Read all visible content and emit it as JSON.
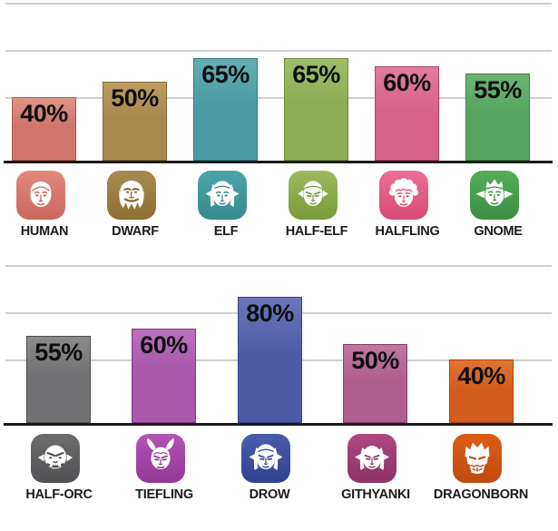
{
  "page": {
    "background": "#ffffff",
    "axis_color": "#1a1a1a",
    "gridline_color": "#cfcfcf",
    "value_text_color": "#0e0e0e",
    "label_text_color": "#1b1b1b"
  },
  "chart_data": [
    {
      "type": "bar",
      "title": "",
      "unit": "%",
      "ylim": [
        0,
        100
      ],
      "gridline_values": [
        100,
        70,
        40
      ],
      "grid": true,
      "legend_position": "none",
      "categories": [
        "HUMAN",
        "DWARF",
        "ELF",
        "HALF-ELF",
        "HALFLING",
        "GNOME"
      ],
      "values": [
        40,
        50,
        65,
        65,
        60,
        55
      ],
      "bars": [
        {
          "label": "HUMAN",
          "value": 40,
          "value_label": "40%",
          "fill": "#d0756a",
          "fill_light": "#de9488",
          "border": "#b25a4b",
          "icon": "human-face-icon",
          "icon_top": "#e2897a",
          "icon_bottom": "#c9685c"
        },
        {
          "label": "DWARF",
          "value": 50,
          "value_label": "50%",
          "fill": "#a7894d",
          "fill_light": "#bb9d62",
          "border": "#83682f",
          "icon": "dwarf-face-icon",
          "icon_top": "#a98a4f",
          "icon_bottom": "#8d6f34"
        },
        {
          "label": "ELF",
          "value": 65,
          "value_label": "65%",
          "fill": "#4a9ca2",
          "fill_light": "#63aeb2",
          "border": "#2f7a80",
          "icon": "elf-face-icon",
          "icon_top": "#4aa5a8",
          "icon_bottom": "#378a8d"
        },
        {
          "label": "HALF-ELF",
          "value": 65,
          "value_label": "65%",
          "fill": "#8dad55",
          "fill_light": "#9fbc68",
          "border": "#6a8a33",
          "icon": "half-elf-face-icon",
          "icon_top": "#9cba5d",
          "icon_bottom": "#7a9a3c"
        },
        {
          "label": "HALFLING",
          "value": 60,
          "value_label": "60%",
          "fill": "#d76189",
          "fill_light": "#e27da0",
          "border": "#b64166",
          "icon": "halfling-face-icon",
          "icon_top": "#ee6e95",
          "icon_bottom": "#d84c74"
        },
        {
          "label": "GNOME",
          "value": 55,
          "value_label": "55%",
          "fill": "#56a55e",
          "fill_light": "#6cb473",
          "border": "#37813f",
          "icon": "gnome-face-icon",
          "icon_top": "#54ad58",
          "icon_bottom": "#3b8f42"
        }
      ]
    },
    {
      "type": "bar",
      "title": "",
      "unit": "%",
      "ylim": [
        0,
        100
      ],
      "gridline_values": [
        100,
        70,
        40
      ],
      "grid": true,
      "legend_position": "none",
      "categories": [
        "HALF-ORC",
        "TIEFLING",
        "DROW",
        "GITHYANKI",
        "DRAGONBORN"
      ],
      "values": [
        55,
        60,
        80,
        50,
        40
      ],
      "bars": [
        {
          "label": "HALF-ORC",
          "value": 55,
          "value_label": "55%",
          "fill": "#727274",
          "fill_light": "#8b8b8d",
          "border": "#4e4e50",
          "icon": "half-orc-face-icon",
          "icon_top": "#6d6d6f",
          "icon_bottom": "#515153"
        },
        {
          "label": "TIEFLING",
          "value": 60,
          "value_label": "60%",
          "fill": "#a958ab",
          "fill_light": "#bb70bd",
          "border": "#84387f",
          "icon": "tiefling-face-icon",
          "icon_top": "#b453b6",
          "icon_bottom": "#933796"
        },
        {
          "label": "DROW",
          "value": 80,
          "value_label": "80%",
          "fill": "#4d5ba6",
          "fill_light": "#6b77b9",
          "border": "#33418c",
          "icon": "drow-face-icon",
          "icon_top": "#4a5cab",
          "icon_bottom": "#31418e"
        },
        {
          "label": "GITHYANKI",
          "value": 50,
          "value_label": "50%",
          "fill": "#af5f8f",
          "fill_light": "#c0779f",
          "border": "#8a3c6d",
          "icon": "githyanki-face-icon",
          "icon_top": "#ab4880",
          "icon_bottom": "#8d3365"
        },
        {
          "label": "DRAGONBORN",
          "value": 40,
          "value_label": "40%",
          "fill": "#d35d1e",
          "fill_light": "#e0762f",
          "border": "#a8440f",
          "icon": "dragonborn-face-icon",
          "icon_top": "#df5c17",
          "icon_bottom": "#bf4a0e"
        }
      ]
    }
  ]
}
